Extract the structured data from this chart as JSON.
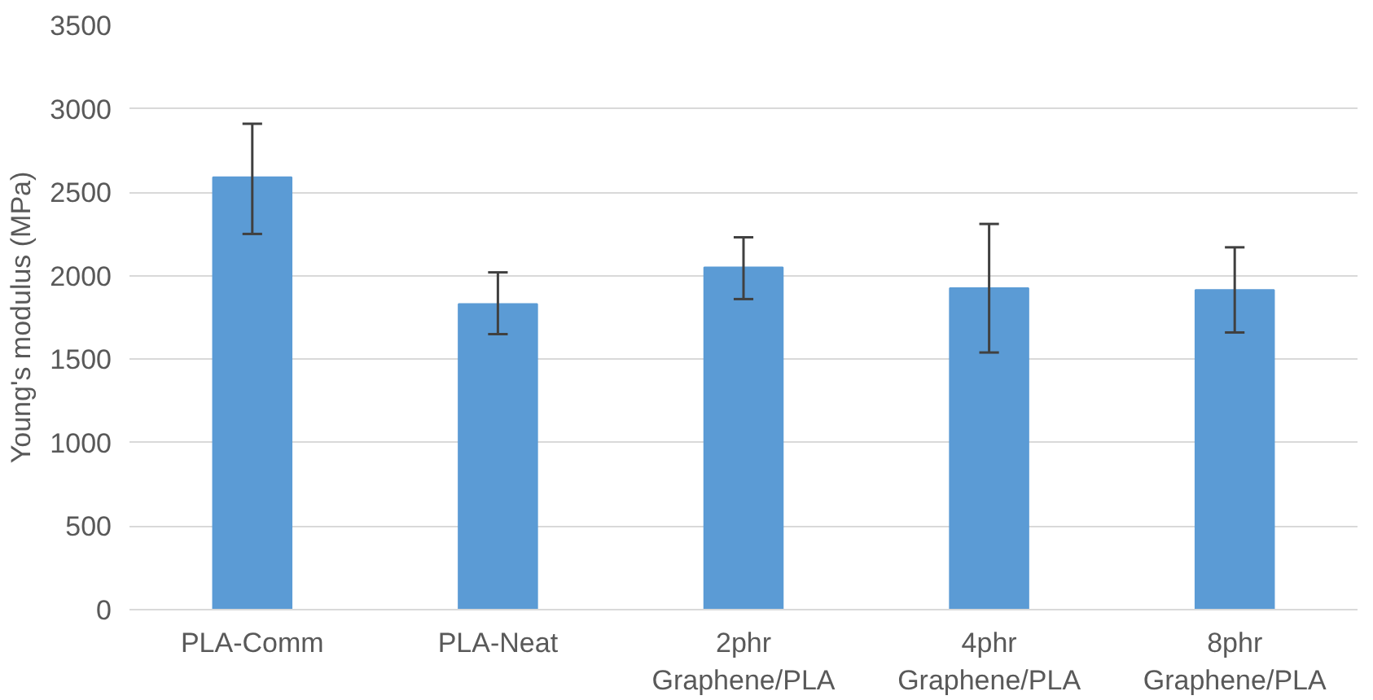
{
  "chart_data": {
    "type": "bar",
    "ylabel": "Young's modulus (MPa)",
    "categories": [
      "PLA-Comm",
      "PLA-Neat",
      "2phr\nGraphene/PLA",
      "4phr\nGraphene/PLA",
      "8phr\nGraphene/PLA"
    ],
    "values": [
      2590,
      1830,
      2050,
      1925,
      1915
    ],
    "errors": [
      [
        2250,
        2910
      ],
      [
        1650,
        2020
      ],
      [
        1860,
        2230
      ],
      [
        1540,
        2310
      ],
      [
        1660,
        2170
      ]
    ],
    "color": "#5b9bd5",
    "ylim": [
      0,
      3500
    ],
    "yticks": [
      0,
      500,
      1000,
      1500,
      2000,
      2500,
      3000,
      3500
    ],
    "grid": "y"
  }
}
